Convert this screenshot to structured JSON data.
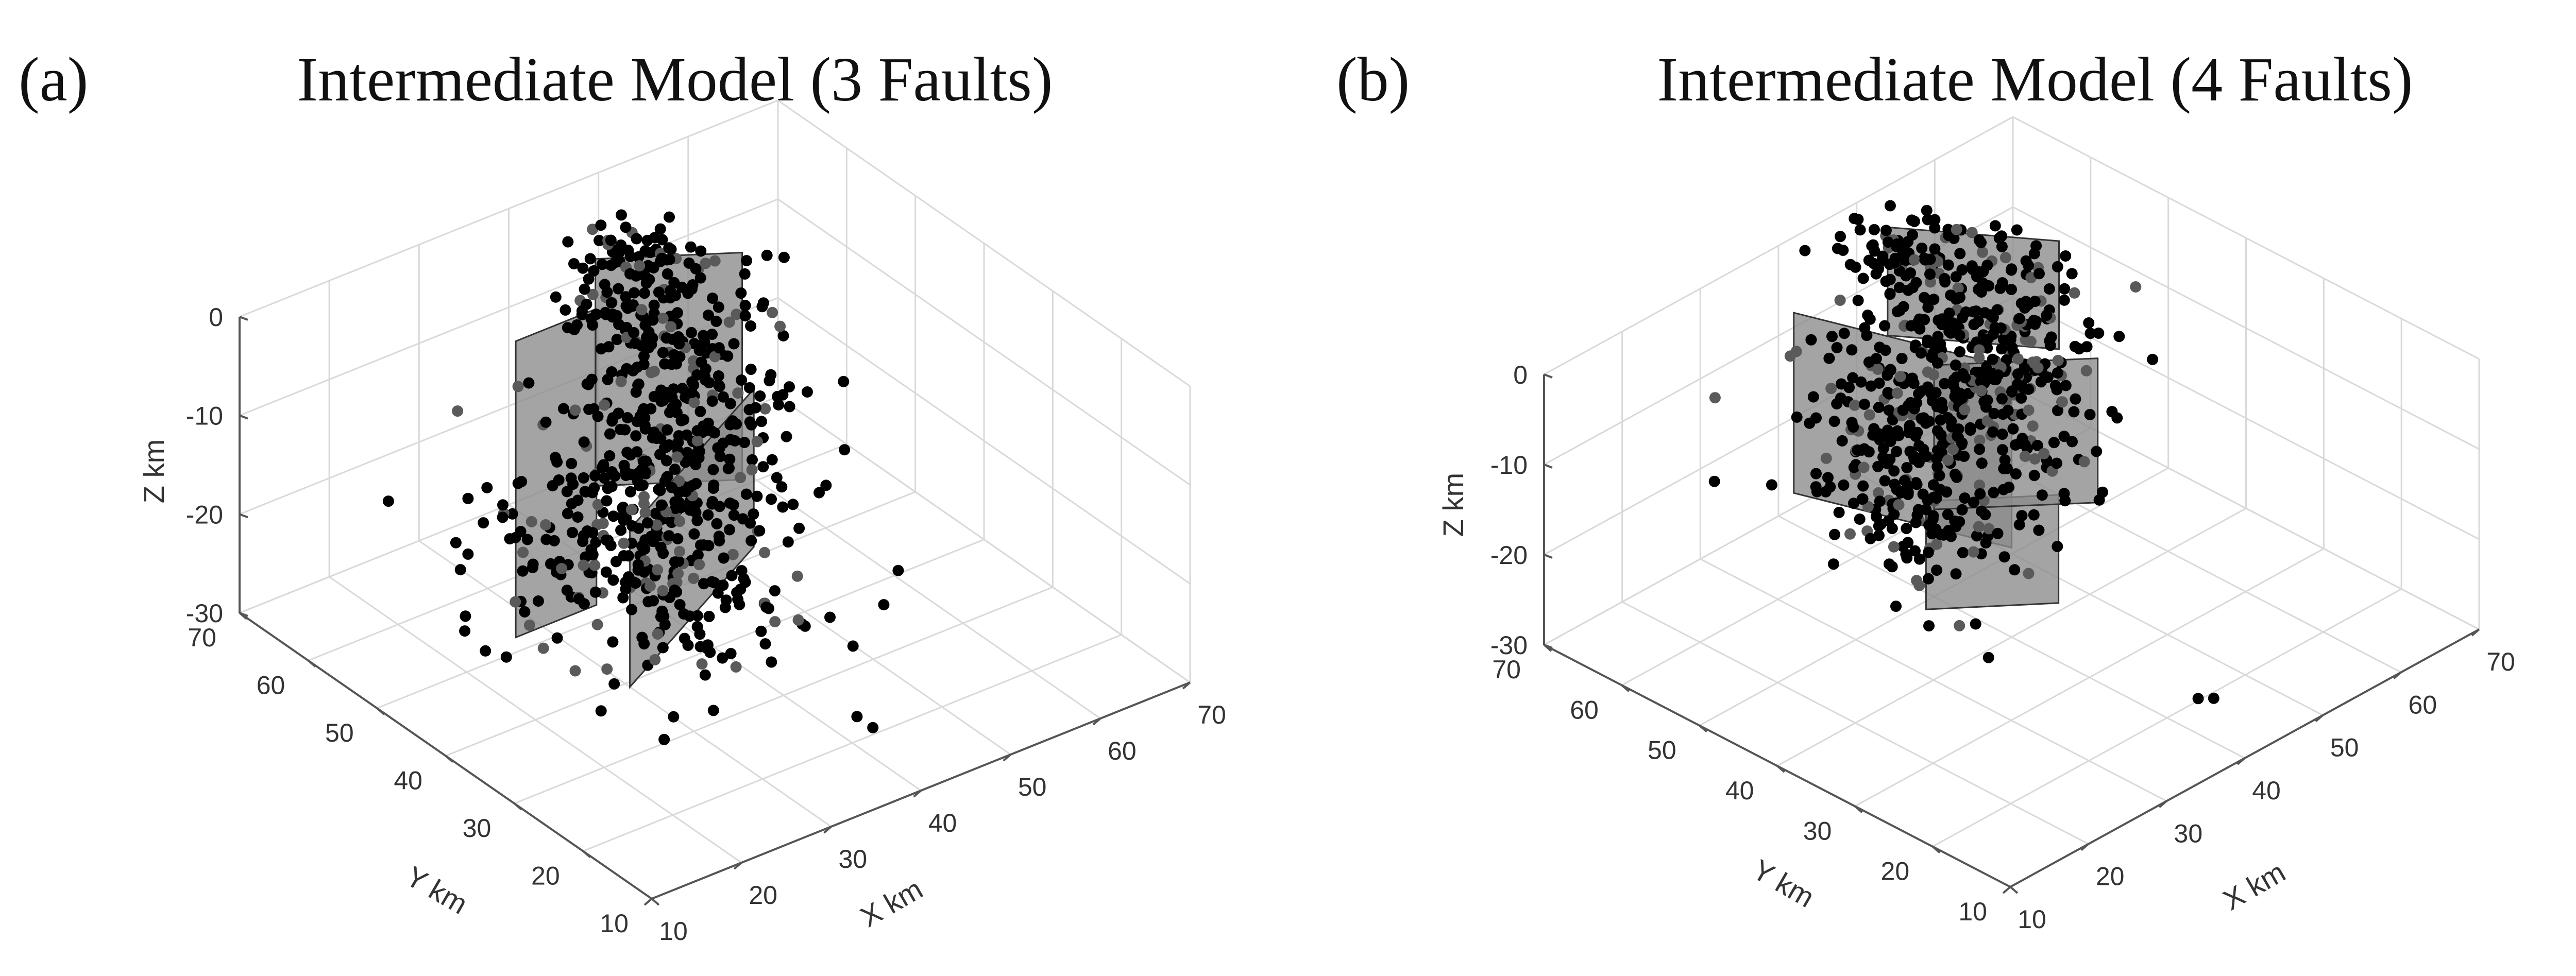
{
  "chart_data": [
    {
      "type": "scatter",
      "panel_label": "(a)",
      "title": "Intermediate Model (3 Faults)",
      "xlabel": "X km",
      "ylabel": "Y km",
      "zlabel": "Z km",
      "xlim": [
        10,
        70
      ],
      "ylim": [
        10,
        70
      ],
      "zlim": [
        -30,
        0
      ],
      "xticks": [
        10,
        20,
        30,
        40,
        50,
        60,
        70
      ],
      "yticks": [
        10,
        20,
        30,
        40,
        50,
        60,
        70
      ],
      "zticks": [
        0,
        -10,
        -20,
        -30
      ],
      "grid": true,
      "faults": [
        {
          "name": "",
          "corners": [
            [
              27,
              52,
              0
            ],
            [
              36,
              52,
              0
            ],
            [
              36,
              52,
              -30
            ],
            [
              27,
              52,
              -30
            ]
          ]
        },
        {
          "name": "",
          "corners": [
            [
              42,
              60,
              -1
            ],
            [
              53,
              53,
              -1
            ],
            [
              53,
              53,
              -24
            ],
            [
              42,
              60,
              -24
            ]
          ]
        },
        {
          "name": "",
          "corners": [
            [
              29,
              38,
              -13
            ],
            [
              52,
              50,
              -13
            ],
            [
              52,
              50,
              -29
            ],
            [
              29,
              38,
              -29
            ]
          ]
        }
      ],
      "clusters": [
        {
          "name": "",
          "count": 260,
          "center": [
            36,
            46,
            -22
          ],
          "spread": [
            6,
            8,
            6
          ]
        },
        {
          "name": "",
          "count": 340,
          "center": [
            45,
            52,
            -14
          ],
          "spread": [
            5,
            5,
            8
          ]
        },
        {
          "name": "",
          "count": 90,
          "center": [
            46,
            59,
            -4
          ],
          "spread": [
            3,
            3,
            3
          ]
        }
      ],
      "isolated_points": [
        [
          39,
          18,
          -26
        ],
        [
          40,
          17,
          -27
        ]
      ]
    },
    {
      "type": "scatter",
      "panel_label": "(b)",
      "title": "Intermediate Model (4 Faults)",
      "xlabel": "X km",
      "ylabel": "Y km",
      "zlabel": "Z km",
      "xlim": [
        10,
        70
      ],
      "ylim": [
        10,
        70
      ],
      "zlim": [
        -30,
        0
      ],
      "xticks": [
        10,
        20,
        30,
        40,
        50,
        60,
        70
      ],
      "yticks": [
        10,
        20,
        30,
        40,
        50,
        60,
        70
      ],
      "zticks": [
        0,
        -10,
        -20,
        -30
      ],
      "grid": true,
      "faults": [
        {
          "name": "",
          "corners": [
            [
              34,
              62,
              -1
            ],
            [
              41,
              41,
              -1
            ],
            [
              41,
              41,
              -21
            ],
            [
              34,
              62,
              -21
            ]
          ]
        },
        {
          "name": "",
          "corners": [
            [
              38,
              49,
              -18
            ],
            [
              47,
              41,
              -18
            ],
            [
              47,
              41,
              -30
            ],
            [
              38,
              49,
              -30
            ]
          ]
        },
        {
          "name": "",
          "corners": [
            [
              49,
              65,
              0
            ],
            [
              58,
              52,
              0
            ],
            [
              58,
              52,
              -12
            ],
            [
              49,
              65,
              -12
            ]
          ]
        },
        {
          "name": "",
          "corners": [
            [
              44,
              54,
              -8
            ],
            [
              55,
              44,
              -8
            ],
            [
              55,
              44,
              -24
            ],
            [
              44,
              54,
              -24
            ]
          ]
        }
      ],
      "clusters": [
        {
          "name": "",
          "count": 300,
          "center": [
            38,
            50,
            -14
          ],
          "spread": [
            4,
            6,
            7
          ]
        },
        {
          "name": "",
          "count": 310,
          "center": [
            52,
            54,
            -10
          ],
          "spread": [
            4,
            6,
            7
          ]
        },
        {
          "name": "",
          "count": 70,
          "center": [
            49,
            63,
            -2
          ],
          "spread": [
            3,
            3,
            2
          ]
        }
      ],
      "isolated_points": [
        [
          41,
          17,
          -27
        ],
        [
          42,
          16,
          -27
        ]
      ]
    }
  ]
}
